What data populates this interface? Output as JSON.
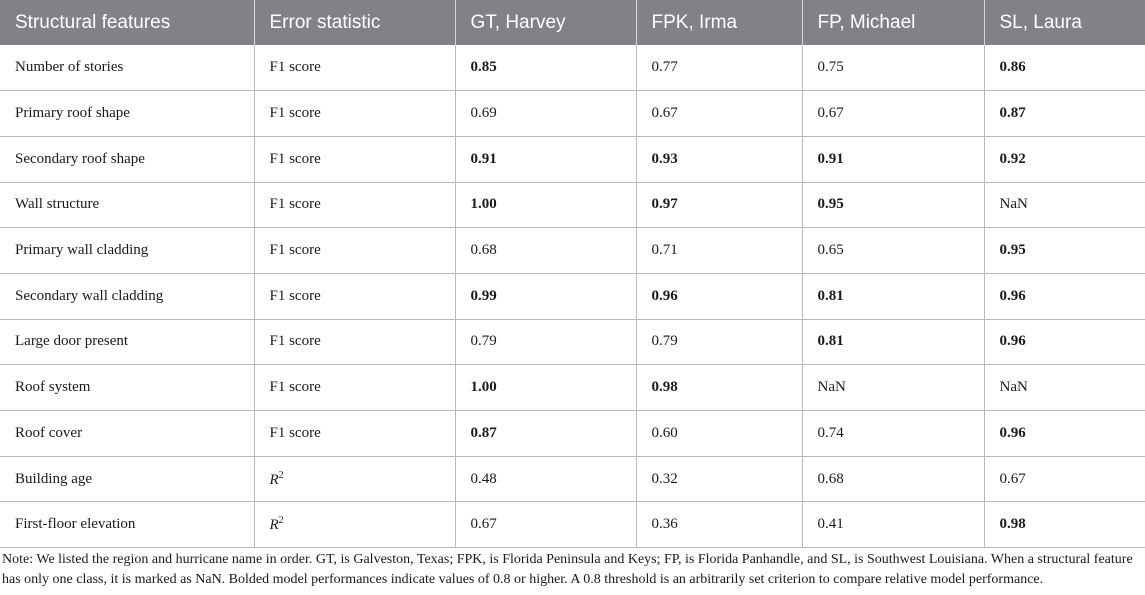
{
  "table": {
    "headers": [
      "Structural features",
      "Error statistic",
      "GT, Harvey",
      "FPK, Irma",
      "FP, Michael",
      "SL, Laura"
    ],
    "rows": [
      {
        "feature": "Number of stories",
        "stat": "F1 score",
        "stat_type": "f1",
        "values": [
          "0.85",
          "0.77",
          "0.75",
          "0.86"
        ],
        "bold": [
          true,
          false,
          false,
          true
        ]
      },
      {
        "feature": "Primary roof shape",
        "stat": "F1 score",
        "stat_type": "f1",
        "values": [
          "0.69",
          "0.67",
          "0.67",
          "0.87"
        ],
        "bold": [
          false,
          false,
          false,
          true
        ]
      },
      {
        "feature": "Secondary roof shape",
        "stat": "F1 score",
        "stat_type": "f1",
        "values": [
          "0.91",
          "0.93",
          "0.91",
          "0.92"
        ],
        "bold": [
          true,
          true,
          true,
          true
        ]
      },
      {
        "feature": "Wall structure",
        "stat": "F1 score",
        "stat_type": "f1",
        "values": [
          "1.00",
          "0.97",
          "0.95",
          "NaN"
        ],
        "bold": [
          true,
          true,
          true,
          false
        ]
      },
      {
        "feature": "Primary wall cladding",
        "stat": "F1 score",
        "stat_type": "f1",
        "values": [
          "0.68",
          "0.71",
          "0.65",
          "0.95"
        ],
        "bold": [
          false,
          false,
          false,
          true
        ]
      },
      {
        "feature": "Secondary wall cladding",
        "stat": "F1 score",
        "stat_type": "f1",
        "values": [
          "0.99",
          "0.96",
          "0.81",
          "0.96"
        ],
        "bold": [
          true,
          true,
          true,
          true
        ]
      },
      {
        "feature": "Large door present",
        "stat": "F1 score",
        "stat_type": "f1",
        "values": [
          "0.79",
          "0.79",
          "0.81",
          "0.96"
        ],
        "bold": [
          false,
          false,
          true,
          true
        ]
      },
      {
        "feature": "Roof system",
        "stat": "F1 score",
        "stat_type": "f1",
        "values": [
          "1.00",
          "0.98",
          "NaN",
          "NaN"
        ],
        "bold": [
          true,
          true,
          false,
          false
        ]
      },
      {
        "feature": "Roof cover",
        "stat": "F1 score",
        "stat_type": "f1",
        "values": [
          "0.87",
          "0.60",
          "0.74",
          "0.96"
        ],
        "bold": [
          true,
          false,
          false,
          true
        ]
      },
      {
        "feature": "Building age",
        "stat": "R",
        "stat_sup": "2",
        "stat_type": "r2",
        "values": [
          "0.48",
          "0.32",
          "0.68",
          "0.67"
        ],
        "bold": [
          false,
          false,
          false,
          false
        ]
      },
      {
        "feature": "First-floor elevation",
        "stat": "R",
        "stat_sup": "2",
        "stat_type": "r2",
        "values": [
          "0.67",
          "0.36",
          "0.41",
          "0.98"
        ],
        "bold": [
          false,
          false,
          false,
          true
        ]
      }
    ]
  },
  "note": "Note: We listed the region and hurricane name in order. GT, is Galveston, Texas; FPK, is Florida Peninsula and Keys; FP, is Florida Panhandle, and SL, is Southwest Louisiana. When a structural feature has only one class, it is marked as NaN. Bolded model performances indicate values of 0.8 or higher. A 0.8 threshold is an arbitrarily set criterion to compare relative model performance.",
  "colors": {
    "header_background": "#808287",
    "header_text": "#ffffff",
    "grid_line": "#b8b8b8"
  }
}
